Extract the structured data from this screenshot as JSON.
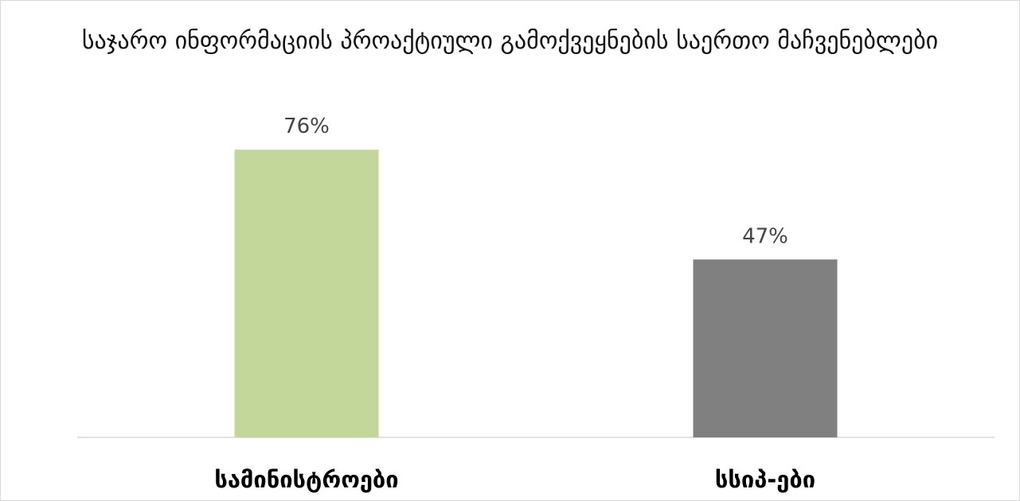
{
  "chart_data": {
    "type": "bar",
    "title": "საჯარო ინფორმაციის პროაქტიული გამოქვეყნების საერთო მაჩვენებლები",
    "categories": [
      "სამინისტროები",
      "სსიპ-ები"
    ],
    "values": [
      76,
      47
    ],
    "value_labels": [
      "76%",
      "47%"
    ],
    "bar_colors": [
      "#c4d79b",
      "#808080"
    ],
    "ylim": [
      0,
      100
    ],
    "grid": false,
    "legend": "none",
    "xlabel": "",
    "ylabel": ""
  },
  "colors": {
    "baseline": "#d9d9d9",
    "frame": "#d9d9d9"
  }
}
